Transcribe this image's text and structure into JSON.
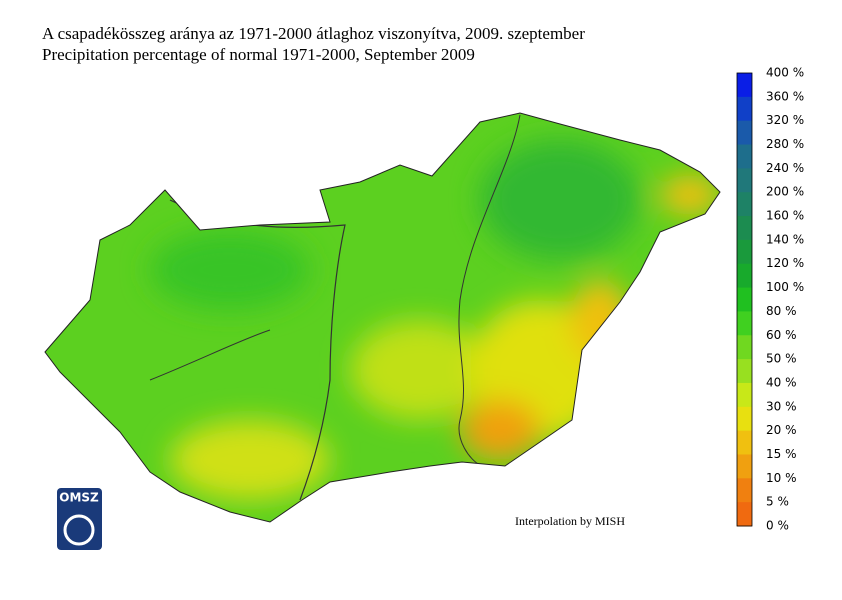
{
  "title": "A csapadékösszeg aránya az 1971-2000 átlaghoz viszonyítva, 2009. szeptember",
  "subtitle": "Precipitation percentage of normal 1971-2000, September 2009",
  "legend": {
    "labels": [
      "400 %",
      "360 %",
      "320 %",
      "280 %",
      "240 %",
      "200 %",
      "160 %",
      "140 %",
      "120 %",
      "100 %",
      "80 %",
      "60 %",
      "50 %",
      "40 %",
      "30 %",
      "20 %",
      "15 %",
      "10 %",
      "5 %",
      "0 %"
    ],
    "colors": [
      "#0a1ee6",
      "#1040c8",
      "#1a5aaa",
      "#1e6e8c",
      "#20787a",
      "#1e8266",
      "#1c8c50",
      "#1a9a3c",
      "#18aa2c",
      "#20c020",
      "#40d020",
      "#70d820",
      "#98e020",
      "#c8e818",
      "#e8e010",
      "#f0c010",
      "#f0a010",
      "#f08010",
      "#f06a10"
    ]
  },
  "credit": "Interpolation by MISH",
  "logo": "OMSZ"
}
